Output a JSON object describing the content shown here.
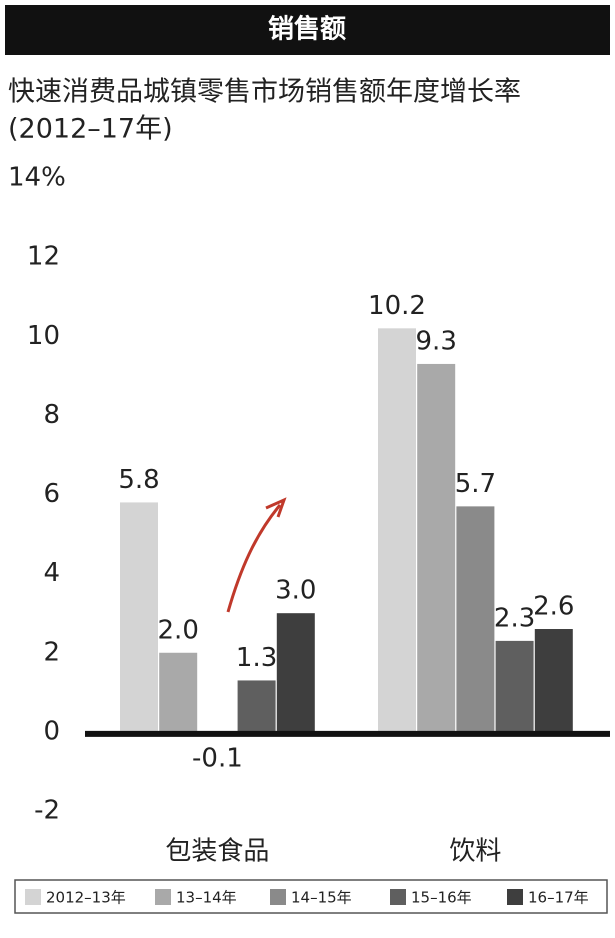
{
  "chart_data": {
    "type": "bar",
    "title": "销售额",
    "subtitle": [
      "快速消费品城镇零售市场销售额年度增长率",
      "(2012–17年)"
    ],
    "categories": [
      "包装食品",
      "饮料"
    ],
    "series": [
      {
        "name": "2012–13年",
        "color": "#d4d4d4",
        "values": [
          5.8,
          10.2
        ],
        "value_labels": [
          "5.8",
          "10.2"
        ]
      },
      {
        "name": "13–14年",
        "color": "#a9a9a9",
        "values": [
          2.0,
          9.3
        ],
        "value_labels": [
          "2.0",
          "9.3"
        ]
      },
      {
        "name": "14–15年",
        "color": "#8a8a8a",
        "values": [
          -0.1,
          5.7
        ],
        "value_labels": [
          "-0.1",
          "5.7"
        ]
      },
      {
        "name": "15–16年",
        "color": "#5f5f5f",
        "values": [
          1.3,
          2.3
        ],
        "value_labels": [
          "1.3",
          "2.3"
        ]
      },
      {
        "name": "16–17年",
        "color": "#3e3e3e",
        "values": [
          3.0,
          2.6
        ],
        "value_labels": [
          "3.0",
          "2.6"
        ]
      }
    ],
    "ylim": [
      -2,
      14
    ],
    "yticks": [
      -2,
      0,
      2,
      4,
      6,
      8,
      10,
      12,
      {
        "value": 14,
        "label": "14%"
      }
    ],
    "grid": false
  }
}
